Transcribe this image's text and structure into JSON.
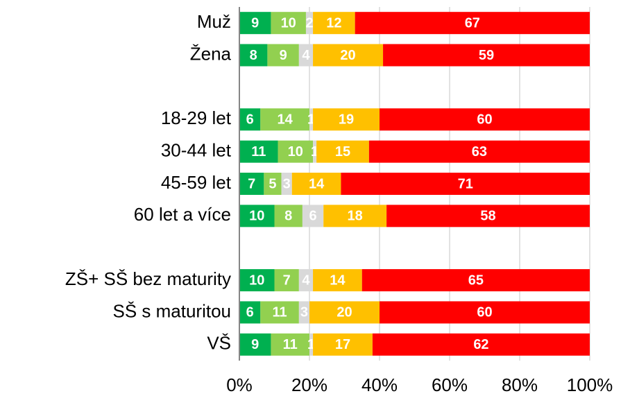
{
  "chart_data": {
    "type": "stacked-bar-horizontal",
    "categories": [
      "Muž",
      "Žena",
      null,
      "18-29 let",
      "30-44 let",
      "45-59 let",
      "60 let a více",
      null,
      "ZŠ+ SŠ bez maturity",
      "SŠ s maturitou",
      "VŠ"
    ],
    "series": [
      {
        "color": "#00b050",
        "values": [
          9,
          8,
          null,
          6,
          11,
          7,
          10,
          null,
          10,
          6,
          9
        ]
      },
      {
        "color": "#92d050",
        "values": [
          10,
          9,
          null,
          14,
          10,
          5,
          8,
          null,
          7,
          11,
          11
        ]
      },
      {
        "color": "#d9d9d9",
        "values": [
          2,
          4,
          null,
          1,
          1,
          3,
          6,
          null,
          4,
          3,
          1
        ]
      },
      {
        "color": "#ffc000",
        "values": [
          12,
          20,
          null,
          19,
          15,
          14,
          18,
          null,
          14,
          20,
          17
        ]
      },
      {
        "color": "#ff0000",
        "values": [
          67,
          59,
          null,
          60,
          63,
          71,
          58,
          null,
          65,
          60,
          62
        ]
      }
    ],
    "xlim": [
      0,
      100
    ],
    "xticks": [
      {
        "value": 0,
        "label": "0%"
      },
      {
        "value": 20,
        "label": "20%"
      },
      {
        "value": 40,
        "label": "40%"
      },
      {
        "value": 60,
        "label": "60%"
      },
      {
        "value": 80,
        "label": "80%"
      },
      {
        "value": 100,
        "label": "100%"
      }
    ],
    "grid": true
  }
}
